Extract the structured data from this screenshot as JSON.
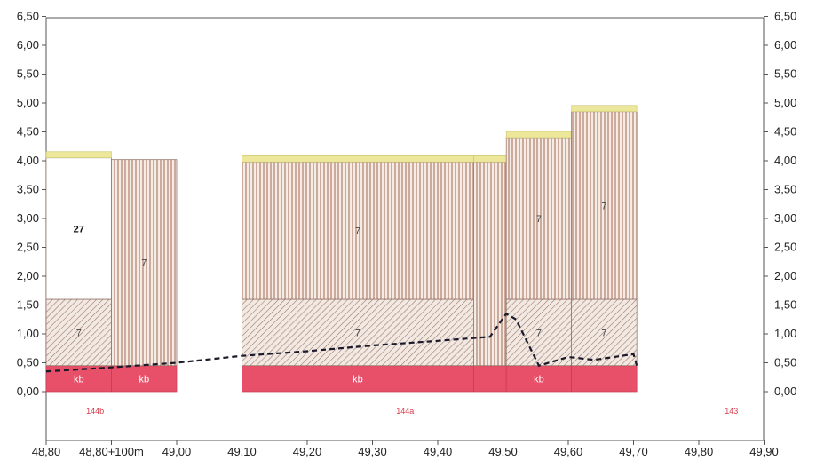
{
  "chart_data": {
    "type": "bar",
    "x_ticks": [
      "48,80",
      "48,80+100m",
      "49,00",
      "49,10",
      "49,20",
      "49,30",
      "49,40",
      "49,50",
      "49,60",
      "49,70",
      "49,80",
      "49,90"
    ],
    "y_ticks": [
      "0,00",
      "0,50",
      "1,00",
      "1,50",
      "2,00",
      "2,50",
      "3,00",
      "3,50",
      "4,00",
      "4,50",
      "5,00",
      "5,50",
      "6,00",
      "6,50"
    ],
    "ylim": [
      0,
      6.5
    ],
    "xlim": [
      48.8,
      49.9
    ],
    "grid": false,
    "colors": {
      "kb": "#e8506a",
      "upper_hatch": "#c89a86",
      "lower_hatch": "#a88678",
      "cap": "#ece79a",
      "dashed": "#1a1a2a",
      "section_text": "#d83a4a"
    },
    "columns": [
      {
        "x0": 48.8,
        "x1": 48.9,
        "top": 4.05,
        "cap": true,
        "layers": [
          {
            "from": 0,
            "to": 0.45,
            "pattern": "kb",
            "label": "kb"
          },
          {
            "from": 0.45,
            "to": 1.6,
            "pattern": "diag",
            "label": "7"
          },
          {
            "from": 1.6,
            "to": 4.05,
            "pattern": "blank",
            "label": "27"
          }
        ]
      },
      {
        "x0": 48.9,
        "x1": 49.0,
        "top": 4.02,
        "cap": false,
        "layers": [
          {
            "from": 0,
            "to": 0.45,
            "pattern": "kb",
            "label": "kb"
          },
          {
            "from": 0.45,
            "to": 4.02,
            "pattern": "vert",
            "label": "7"
          }
        ]
      },
      {
        "x0": 49.1,
        "x1": 49.455,
        "top": 3.98,
        "cap": true,
        "layers": [
          {
            "from": 0,
            "to": 0.45,
            "pattern": "kb",
            "label": "kb"
          },
          {
            "from": 0.45,
            "to": 1.6,
            "pattern": "diag",
            "label": "7"
          },
          {
            "from": 1.6,
            "to": 3.98,
            "pattern": "vert",
            "label": "7"
          }
        ]
      },
      {
        "x0": 49.455,
        "x1": 49.505,
        "top": 3.98,
        "cap": true,
        "layers": [
          {
            "from": 0,
            "to": 0.45,
            "pattern": "kb",
            "label": ""
          },
          {
            "from": 0.45,
            "to": 3.98,
            "pattern": "vert",
            "label": ""
          }
        ]
      },
      {
        "x0": 49.505,
        "x1": 49.605,
        "top": 4.4,
        "cap": true,
        "layers": [
          {
            "from": 0,
            "to": 0.45,
            "pattern": "kb",
            "label": "kb"
          },
          {
            "from": 0.45,
            "to": 1.6,
            "pattern": "diag",
            "label": "7"
          },
          {
            "from": 1.6,
            "to": 4.4,
            "pattern": "vert",
            "label": "7"
          }
        ]
      },
      {
        "x0": 49.605,
        "x1": 49.705,
        "top": 4.85,
        "cap": true,
        "layers": [
          {
            "from": 0,
            "to": 0.45,
            "pattern": "kb",
            "label": ""
          },
          {
            "from": 0.45,
            "to": 1.6,
            "pattern": "diag",
            "label": "7"
          },
          {
            "from": 1.6,
            "to": 4.85,
            "pattern": "vert",
            "label": "7"
          }
        ]
      }
    ],
    "dashed_line": {
      "x": [
        48.8,
        48.9,
        49.0,
        49.1,
        49.2,
        49.3,
        49.4,
        49.48,
        49.505,
        49.52,
        49.555,
        49.6,
        49.64,
        49.7,
        49.705
      ],
      "y": [
        0.35,
        0.42,
        0.5,
        0.62,
        0.7,
        0.8,
        0.88,
        0.95,
        1.35,
        1.25,
        0.45,
        0.6,
        0.55,
        0.65,
        0.45
      ]
    },
    "section_labels": [
      {
        "text": "144b",
        "x": 48.875
      },
      {
        "text": "144a",
        "x": 49.35
      },
      {
        "text": "143",
        "x": 49.85
      }
    ]
  }
}
